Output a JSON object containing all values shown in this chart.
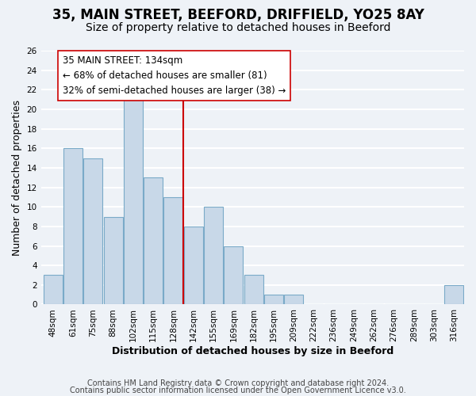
{
  "title": "35, MAIN STREET, BEEFORD, DRIFFIELD, YO25 8AY",
  "subtitle": "Size of property relative to detached houses in Beeford",
  "xlabel": "Distribution of detached houses by size in Beeford",
  "ylabel": "Number of detached properties",
  "footer_lines": [
    "Contains HM Land Registry data © Crown copyright and database right 2024.",
    "Contains public sector information licensed under the Open Government Licence v3.0."
  ],
  "bins": [
    "48sqm",
    "61sqm",
    "75sqm",
    "88sqm",
    "102sqm",
    "115sqm",
    "128sqm",
    "142sqm",
    "155sqm",
    "169sqm",
    "182sqm",
    "195sqm",
    "209sqm",
    "222sqm",
    "236sqm",
    "249sqm",
    "262sqm",
    "276sqm",
    "289sqm",
    "303sqm",
    "316sqm"
  ],
  "values": [
    3,
    16,
    15,
    9,
    21,
    13,
    11,
    8,
    10,
    6,
    3,
    1,
    1,
    0,
    0,
    0,
    0,
    0,
    0,
    0,
    2
  ],
  "bar_color": "#c8d8e8",
  "bar_edge_color": "#7aaac8",
  "vline_x_index": 6.5,
  "vline_color": "#cc0000",
  "annotation_box": {
    "text_line1": "35 MAIN STREET: 134sqm",
    "text_line2": "← 68% of detached houses are smaller (81)",
    "text_line3": "32% of semi-detached houses are larger (38) →",
    "box_color": "white",
    "box_edge_color": "#cc0000"
  },
  "ylim": [
    0,
    26
  ],
  "yticks": [
    0,
    2,
    4,
    6,
    8,
    10,
    12,
    14,
    16,
    18,
    20,
    22,
    24,
    26
  ],
  "bg_color": "#eef2f7",
  "grid_color": "white",
  "title_fontsize": 12,
  "subtitle_fontsize": 10,
  "axis_label_fontsize": 9,
  "tick_fontsize": 7.5,
  "annotation_fontsize": 8.5,
  "footer_fontsize": 7
}
